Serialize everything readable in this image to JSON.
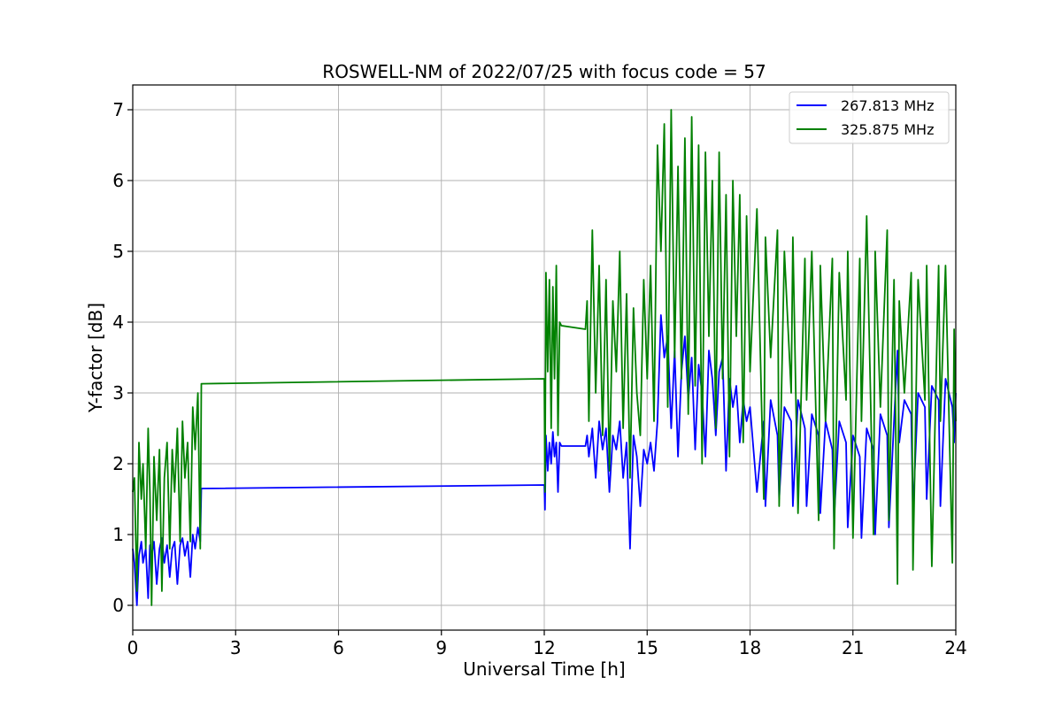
{
  "chart_data": {
    "type": "line",
    "title": "ROSWELL-NM of 2022/07/25 with focus code = 57",
    "xlabel": "Universal Time [h]",
    "ylabel": "Y-factor [dB]",
    "xlim": [
      0,
      24
    ],
    "ylim": [
      -0.35,
      7.35
    ],
    "xticks": [
      0,
      3,
      6,
      9,
      12,
      15,
      18,
      21,
      24
    ],
    "yticks": [
      0,
      1,
      2,
      3,
      4,
      5,
      6,
      7
    ],
    "grid": true,
    "legend_position": "top-right",
    "series": [
      {
        "name": "267.813 MHz",
        "color": "#0000ff",
        "x": [
          0.0,
          0.05,
          0.12,
          0.18,
          0.25,
          0.3,
          0.38,
          0.45,
          0.5,
          0.55,
          0.62,
          0.7,
          0.78,
          0.85,
          0.92,
          1.0,
          1.08,
          1.15,
          1.22,
          1.3,
          1.38,
          1.45,
          1.52,
          1.6,
          1.68,
          1.75,
          1.82,
          1.9,
          1.97,
          2.0,
          12.0,
          12.02,
          12.05,
          12.1,
          12.15,
          12.2,
          12.25,
          12.3,
          12.35,
          12.4,
          12.45,
          12.5,
          13.2,
          13.25,
          13.3,
          13.4,
          13.5,
          13.6,
          13.7,
          13.8,
          13.9,
          14.0,
          14.1,
          14.2,
          14.3,
          14.4,
          14.5,
          14.6,
          14.7,
          14.8,
          14.9,
          15.0,
          15.1,
          15.2,
          15.3,
          15.4,
          15.5,
          15.6,
          15.7,
          15.8,
          15.9,
          16.0,
          16.1,
          16.2,
          16.3,
          16.4,
          16.5,
          16.6,
          16.7,
          16.8,
          16.9,
          17.0,
          17.1,
          17.2,
          17.3,
          17.4,
          17.5,
          17.6,
          17.7,
          17.8,
          17.9,
          18.0,
          18.2,
          18.4,
          18.45,
          18.6,
          18.8,
          18.85,
          19.0,
          19.2,
          19.25,
          19.4,
          19.6,
          19.65,
          19.8,
          20.0,
          20.05,
          20.2,
          20.4,
          20.45,
          20.6,
          20.8,
          20.85,
          21.0,
          21.2,
          21.25,
          21.4,
          21.6,
          21.65,
          21.8,
          22.0,
          22.05,
          22.2,
          22.3,
          22.35,
          22.5,
          22.7,
          22.75,
          22.9,
          23.1,
          23.15,
          23.3,
          23.5,
          23.55,
          23.7,
          23.9,
          23.95,
          24.0
        ],
        "y": [
          0.8,
          0.6,
          0.0,
          0.7,
          0.9,
          0.6,
          0.8,
          0.1,
          0.85,
          0.7,
          0.9,
          0.3,
          0.8,
          0.95,
          0.6,
          0.85,
          0.4,
          0.8,
          0.9,
          0.3,
          0.85,
          0.95,
          0.7,
          0.9,
          0.4,
          1.0,
          0.8,
          1.1,
          0.9,
          1.65,
          1.7,
          1.35,
          2.4,
          1.9,
          2.3,
          2.0,
          2.45,
          2.1,
          2.3,
          1.6,
          2.3,
          2.25,
          2.25,
          2.4,
          2.1,
          2.5,
          1.8,
          2.6,
          2.2,
          2.5,
          1.6,
          2.4,
          2.2,
          2.6,
          1.8,
          2.3,
          0.8,
          2.4,
          2.1,
          1.4,
          2.2,
          2.0,
          2.3,
          1.9,
          2.6,
          4.1,
          3.5,
          3.8,
          2.5,
          3.6,
          2.1,
          3.3,
          3.8,
          2.9,
          3.5,
          2.2,
          3.4,
          3.0,
          2.1,
          3.6,
          3.2,
          2.4,
          3.3,
          3.5,
          1.9,
          3.2,
          2.8,
          3.1,
          2.3,
          2.9,
          2.6,
          2.8,
          1.6,
          2.6,
          1.4,
          2.9,
          2.4,
          1.5,
          2.8,
          2.6,
          1.4,
          2.9,
          2.5,
          1.4,
          2.7,
          2.4,
          1.3,
          2.6,
          2.2,
          1.2,
          2.6,
          2.3,
          1.1,
          2.4,
          2.1,
          0.95,
          2.5,
          2.2,
          1.0,
          2.7,
          2.4,
          1.1,
          2.6,
          3.6,
          2.3,
          2.9,
          2.7,
          1.3,
          3.0,
          2.8,
          1.5,
          3.1,
          2.9,
          1.4,
          3.2,
          2.8,
          2.3,
          3.0
        ]
      },
      {
        "name": "325.875 MHz",
        "color": "#008000",
        "x": [
          0.0,
          0.05,
          0.12,
          0.18,
          0.25,
          0.3,
          0.38,
          0.45,
          0.5,
          0.55,
          0.62,
          0.7,
          0.78,
          0.85,
          0.92,
          1.0,
          1.08,
          1.15,
          1.22,
          1.3,
          1.38,
          1.45,
          1.52,
          1.6,
          1.68,
          1.75,
          1.82,
          1.9,
          1.97,
          2.0,
          12.0,
          12.02,
          12.05,
          12.1,
          12.15,
          12.2,
          12.25,
          12.3,
          12.35,
          12.4,
          12.45,
          12.5,
          13.2,
          13.25,
          13.3,
          13.4,
          13.5,
          13.6,
          13.7,
          13.8,
          13.9,
          14.0,
          14.1,
          14.2,
          14.3,
          14.4,
          14.5,
          14.6,
          14.7,
          14.8,
          14.9,
          15.0,
          15.1,
          15.2,
          15.3,
          15.4,
          15.5,
          15.6,
          15.7,
          15.8,
          15.9,
          16.0,
          16.1,
          16.2,
          16.3,
          16.4,
          16.5,
          16.6,
          16.7,
          16.8,
          16.9,
          17.0,
          17.1,
          17.2,
          17.3,
          17.4,
          17.5,
          17.6,
          17.7,
          17.8,
          17.9,
          18.0,
          18.2,
          18.4,
          18.45,
          18.6,
          18.8,
          18.85,
          19.0,
          19.2,
          19.25,
          19.4,
          19.6,
          19.65,
          19.8,
          20.0,
          20.05,
          20.2,
          20.4,
          20.45,
          20.6,
          20.8,
          20.85,
          21.0,
          21.2,
          21.25,
          21.4,
          21.6,
          21.65,
          21.8,
          22.0,
          22.05,
          22.2,
          22.3,
          22.35,
          22.5,
          22.7,
          22.75,
          22.9,
          23.1,
          23.15,
          23.3,
          23.5,
          23.55,
          23.7,
          23.9,
          23.95,
          24.0
        ],
        "y": [
          1.6,
          1.8,
          0.2,
          2.3,
          1.5,
          2.0,
          0.8,
          2.5,
          1.6,
          0.0,
          2.1,
          1.2,
          2.2,
          0.2,
          1.8,
          2.3,
          0.8,
          2.2,
          1.6,
          2.5,
          0.9,
          2.6,
          1.8,
          2.3,
          0.9,
          2.8,
          2.2,
          3.0,
          0.8,
          3.13,
          3.2,
          1.6,
          4.7,
          3.3,
          4.6,
          2.5,
          4.5,
          3.2,
          4.8,
          2.4,
          4.0,
          3.95,
          3.9,
          4.3,
          2.6,
          5.3,
          3.0,
          4.8,
          2.4,
          4.6,
          1.9,
          4.3,
          3.3,
          5.0,
          2.5,
          4.4,
          1.8,
          4.2,
          3.0,
          2.4,
          4.6,
          3.2,
          4.8,
          2.6,
          6.5,
          5.0,
          6.8,
          2.8,
          7.0,
          3.5,
          6.2,
          3.2,
          6.6,
          2.7,
          6.9,
          3.1,
          6.5,
          2.0,
          6.4,
          3.8,
          6.0,
          2.5,
          6.4,
          3.2,
          5.8,
          2.1,
          6.0,
          3.8,
          5.8,
          2.3,
          5.5,
          3.3,
          5.6,
          1.5,
          5.2,
          3.5,
          5.3,
          1.4,
          5.0,
          3.0,
          5.2,
          1.3,
          4.9,
          2.9,
          5.0,
          1.2,
          4.8,
          2.6,
          4.9,
          0.8,
          4.7,
          2.9,
          5.0,
          0.95,
          4.9,
          2.6,
          5.5,
          1.0,
          5.0,
          2.8,
          5.3,
          1.2,
          4.6,
          0.3,
          4.3,
          3.0,
          4.7,
          0.5,
          4.6,
          2.9,
          4.8,
          0.55,
          4.8,
          2.6,
          4.8,
          0.6,
          3.9,
          2.6
        ]
      }
    ]
  }
}
